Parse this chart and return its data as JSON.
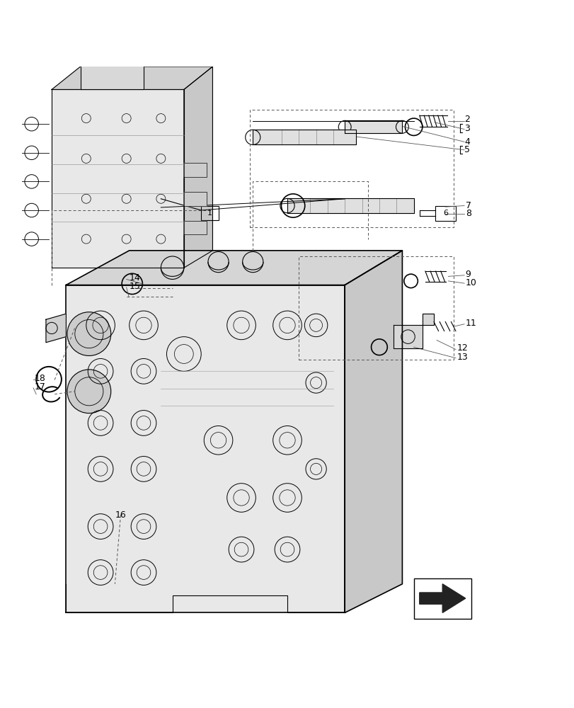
{
  "bg_color": "#ffffff",
  "line_color": "#000000",
  "dashed_color": "#555555",
  "label_fontsize": 9,
  "fig_width": 8.12,
  "fig_height": 10.0,
  "dpi": 100
}
